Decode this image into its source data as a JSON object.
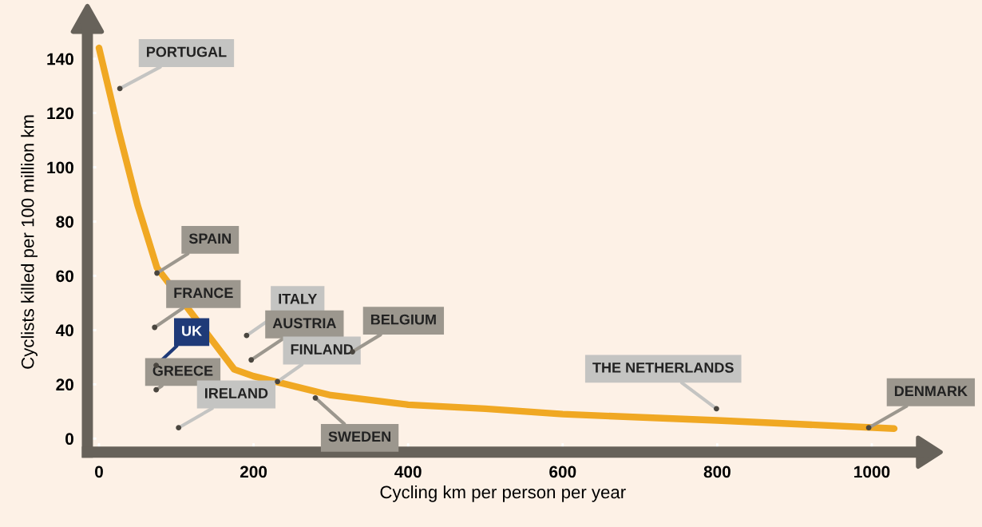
{
  "chart_data": {
    "type": "line",
    "xlabel": "Cycling km per person per year",
    "ylabel": "Cyclists killed per 100 million km",
    "x": [
      0,
      10,
      25,
      50,
      75,
      175,
      200,
      300,
      400,
      500,
      600,
      800,
      1029
    ],
    "series": [
      {
        "color": "#f0a823",
        "values": [
          144,
          132,
          114,
          86,
          63,
          25.5,
          23,
          16,
          12.5,
          11,
          9,
          6.7,
          3.7
        ]
      },
      {
        "type": "scatter",
        "color": "#4a463f",
        "x": [
          27,
          75,
          72,
          74,
          74,
          103,
          191,
          197,
          231,
          328,
          280,
          799,
          996
        ],
        "values": [
          129,
          61,
          41,
          27,
          18,
          4,
          38,
          29,
          21,
          32,
          15,
          11,
          4
        ]
      }
    ],
    "xlim": [
      -15,
      1060
    ],
    "ylim": [
      -5,
      150
    ],
    "xticks": [
      0,
      200,
      400,
      600,
      800,
      1000
    ],
    "yticks": [
      0,
      20,
      40,
      60,
      80,
      100,
      120,
      140
    ],
    "annotations": [
      {
        "text": "PORTUGAL",
        "x": 27,
        "y": 129
      },
      {
        "text": "SPAIN",
        "x": 75,
        "y": 61
      },
      {
        "text": "FRANCE",
        "x": 72,
        "y": 41
      },
      {
        "text": "UK",
        "x": 74,
        "y": 27
      },
      {
        "text": "GREECE",
        "x": 74,
        "y": 18
      },
      {
        "text": "IRELAND",
        "x": 103,
        "y": 4
      },
      {
        "text": "ITALY",
        "x": 191,
        "y": 38
      },
      {
        "text": "AUSTRIA",
        "x": 197,
        "y": 29
      },
      {
        "text": "FINLAND",
        "x": 231,
        "y": 21
      },
      {
        "text": "BELGIUM",
        "x": 328,
        "y": 32
      },
      {
        "text": "SWEDEN",
        "x": 280,
        "y": 15
      },
      {
        "text": "THE NETHERLANDS",
        "x": 799,
        "y": 11
      },
      {
        "text": "DENMARK",
        "x": 996,
        "y": 4
      }
    ]
  }
}
